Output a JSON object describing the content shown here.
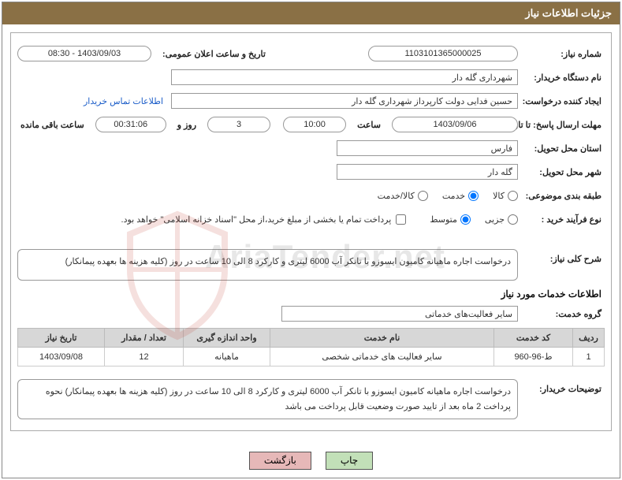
{
  "header": {
    "title": "جزئیات اطلاعات نیاز"
  },
  "fields": {
    "need_number_label": "شماره نیاز:",
    "need_number": "1103101365000025",
    "announce_datetime_label": "تاریخ و ساعت اعلان عمومی:",
    "announce_datetime": "1403/09/03 - 08:30",
    "buyer_org_label": "نام دستگاه خریدار:",
    "buyer_org": "شهرداری گله دار",
    "requester_label": "ایجاد کننده درخواست:",
    "requester": "حسین فدایی دولت کارپرداز شهرداری گله دار",
    "contact_link": "اطلاعات تماس خریدار",
    "deadline_label": "مهلت ارسال پاسخ: تا تاریخ:",
    "deadline_date": "1403/09/06",
    "deadline_time_label": "ساعت",
    "deadline_time": "10:00",
    "days_label": "روز و",
    "days": "3",
    "countdown": "00:31:06",
    "remaining_label": "ساعت باقی مانده",
    "province_label": "استان محل تحویل:",
    "province": "فارس",
    "city_label": "شهر محل تحویل:",
    "city": "گله دار",
    "category_label": "طبقه بندی موضوعی:",
    "process_type_label": "نوع فرآیند خرید :",
    "payment_note": "پرداخت تمام یا بخشی از مبلغ خرید،از محل \"اسناد خزانه اسلامی\" خواهد بود."
  },
  "radios": {
    "category": [
      {
        "label": "کالا",
        "checked": false
      },
      {
        "label": "خدمت",
        "checked": true
      },
      {
        "label": "کالا/خدمت",
        "checked": false
      }
    ],
    "process": [
      {
        "label": "جزیی",
        "checked": false
      },
      {
        "label": "متوسط",
        "checked": true
      }
    ]
  },
  "summary": {
    "label": "شرح کلی نیاز:",
    "text": "درخواست اجاره ماهیانه کامیون ایسوزو با تانکر آب 6000 لیتری و کارکرد 8 الی 10 ساعت در روز (کلیه هزینه ها بعهده پیمانکار)"
  },
  "services_section": {
    "title": "اطلاعات خدمات مورد نیاز",
    "group_label": "گروه خدمت:",
    "group_value": "سایر فعالیت‌های خدماتی"
  },
  "table": {
    "columns": [
      "ردیف",
      "کد خدمت",
      "نام خدمت",
      "واحد اندازه گیری",
      "تعداد / مقدار",
      "تاریخ نیاز"
    ],
    "rows": [
      [
        "1",
        "ط-96-960",
        "سایر فعالیت های خدماتی شخصی",
        "ماهیانه",
        "12",
        "1403/09/08"
      ]
    ],
    "col_widths": [
      "40px",
      "100px",
      "auto",
      "110px",
      "100px",
      "110px"
    ]
  },
  "buyer_notes": {
    "label": "توضیحات خریدار:",
    "text": "درخواست اجاره ماهیانه کامیون ایسوزو با تانکر آب 6000 لیتری و کارکرد 8 الی 10 ساعت در روز (کلیه هزینه ها بعهده پیمانکار) نحوه پرداخت 2 ماه بعد از تایید صورت وضعیت قابل پرداخت می باشد"
  },
  "buttons": {
    "print": "چاپ",
    "back": "بازگشت"
  },
  "watermark": "AriaTender.net"
}
